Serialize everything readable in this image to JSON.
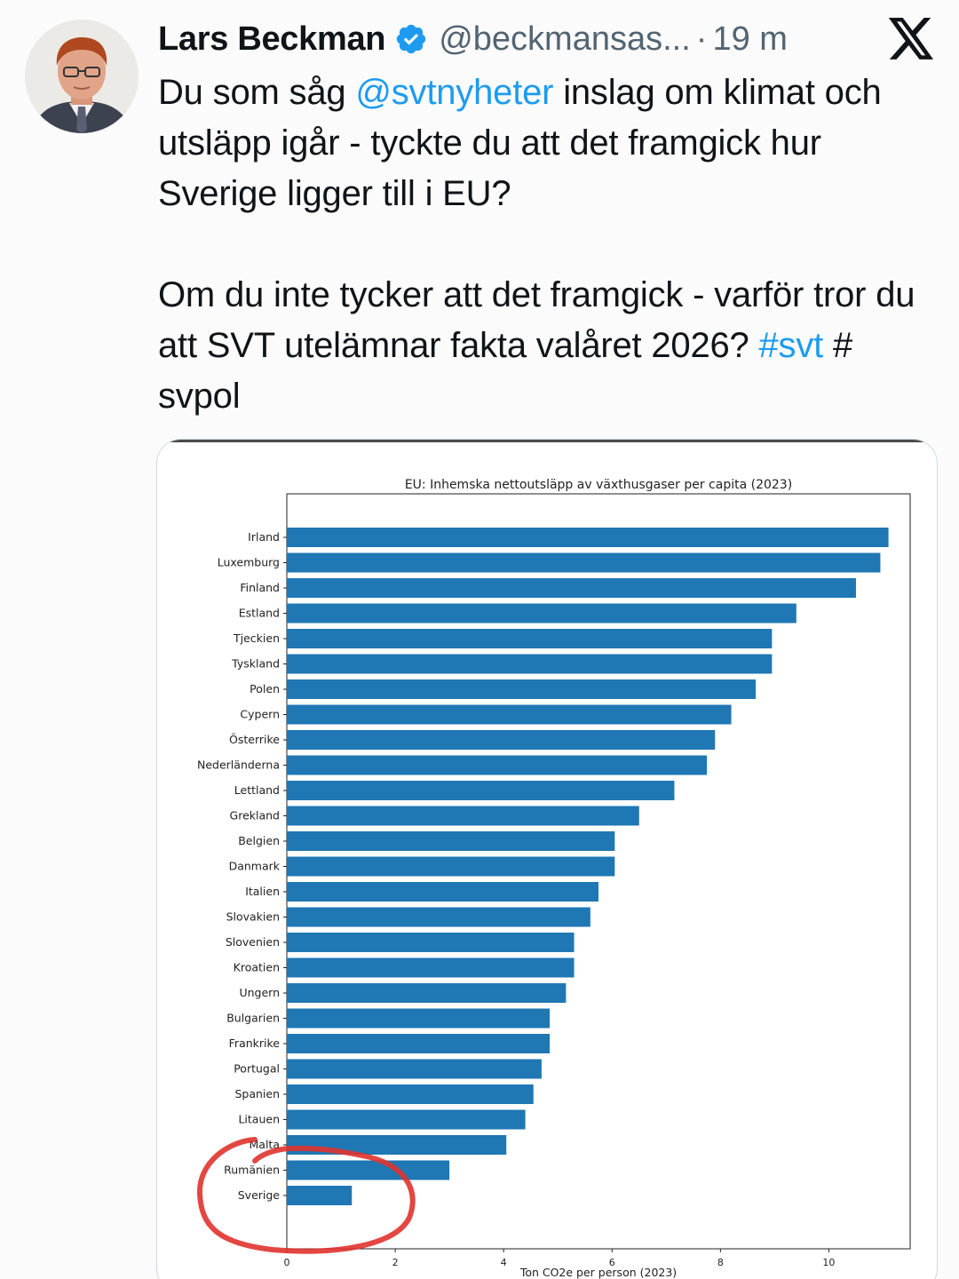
{
  "tweet": {
    "author_name": "Lars Beckman",
    "handle": "@beckmansas...",
    "separator": "·",
    "time_ago": "19 m",
    "text": {
      "p1_pre": "Du som såg ",
      "p1_mention": "@svtnyheter",
      "p1_post": " inslag om klimat och utsläpp igår - tyckte du att det framgick hur Sverige ligger till i EU?",
      "p2_pre": "Om du inte tycker att det framgick - varför tror du att SVT utelämnar fakta valåret 2026? ",
      "p2_hashtag": "#svt",
      "p2_post": " # svpol"
    }
  },
  "icons": {
    "avatar": "avatar-photo",
    "verified": "verified-badge-icon",
    "platform": "x-logo-icon"
  },
  "colors": {
    "link": "#1d9bf0",
    "verified": "#1d9bf0",
    "bar": "#1f77b4",
    "annotation_circle": "#e0332e"
  },
  "chart_data": {
    "type": "bar",
    "orientation": "horizontal",
    "title": "EU: Inhemska nettoutsläpp av växthusgaser per capita (2023)",
    "xlabel": "Ton CO2e per person (2023)",
    "ylabel": "",
    "xlim": [
      0,
      11.5
    ],
    "xticks": [
      0,
      2,
      4,
      6,
      8,
      10
    ],
    "grid": false,
    "categories": [
      "Irland",
      "Luxemburg",
      "Finland",
      "Estland",
      "Tjeckien",
      "Tyskland",
      "Polen",
      "Cypern",
      "Österrike",
      "Nederländerna",
      "Lettland",
      "Grekland",
      "Belgien",
      "Danmark",
      "Italien",
      "Slovakien",
      "Slovenien",
      "Kroatien",
      "Ungern",
      "Bulgarien",
      "Frankrike",
      "Portugal",
      "Spanien",
      "Litauen",
      "Malta",
      "Rumänien",
      "Sverige"
    ],
    "values": [
      11.1,
      10.95,
      10.5,
      9.4,
      8.95,
      8.95,
      8.65,
      8.2,
      7.9,
      7.75,
      7.15,
      6.5,
      6.05,
      6.05,
      5.75,
      5.6,
      5.3,
      5.3,
      5.15,
      4.85,
      4.85,
      4.7,
      4.55,
      4.4,
      4.05,
      3.0,
      1.2
    ],
    "annotation": "red hand-drawn circle around Rumänien and Sverige"
  }
}
